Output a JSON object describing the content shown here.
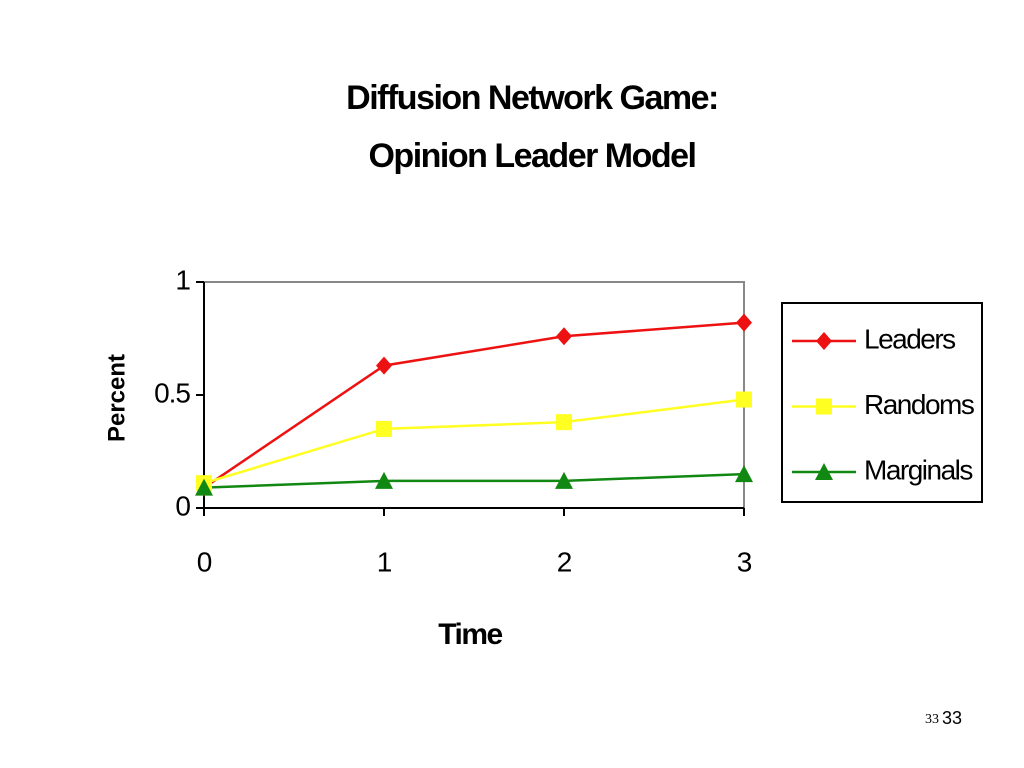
{
  "chart_data": {
    "type": "line",
    "title": [
      "Diffusion Network Game:",
      "Opinion Leader Model"
    ],
    "x_label": "Time",
    "y_label": "Percent",
    "x": [
      0,
      1,
      2,
      3
    ],
    "xlim": [
      0,
      3
    ],
    "xticks": [
      0,
      1,
      2,
      3
    ],
    "ylim": [
      0,
      1
    ],
    "yticks": [
      0,
      0.5,
      1
    ],
    "grid": false,
    "legend": "right",
    "series": [
      {
        "name": "Leaders",
        "color": "#ee1111",
        "marker": "diamond",
        "values": [
          0.09,
          0.63,
          0.76,
          0.82
        ]
      },
      {
        "name": "Randoms",
        "color": "#ffff22",
        "marker": "square",
        "values": [
          0.11,
          0.35,
          0.38,
          0.48
        ]
      },
      {
        "name": "Marginals",
        "color": "#118811",
        "marker": "triangle",
        "values": [
          0.09,
          0.12,
          0.12,
          0.15
        ]
      }
    ]
  },
  "footer": {
    "slide_number": "33",
    "page_number": "33"
  }
}
